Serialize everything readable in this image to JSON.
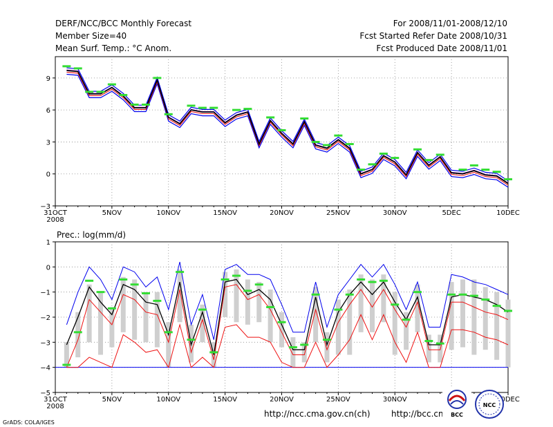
{
  "header": {
    "left": [
      "DERF/NCC/BCC Monthly Forecast",
      "Member Size=40",
      "Mean Surf. Temp.: °C Anom."
    ],
    "right": [
      "For 2008/11/01-2008/12/10",
      "Fcst Started Refer Date 2008/10/31",
      "Fcst Produced Date 2008/11/01"
    ]
  },
  "footer": {
    "grads": "GrADS: COLA/IGES",
    "url1": "http://ncc.cma.gov.cn(ch)",
    "url2": "http://bcc.cma.",
    "logo_bcc": "BCC",
    "logo_ncc": "NCC"
  },
  "colors": {
    "obs": "#33dd33",
    "upper": "#0000ee",
    "lower": "#ee1111",
    "mean": "#000000",
    "box": "#cfcfcf",
    "frame": "#000000"
  },
  "chart_data": [
    {
      "type": "line",
      "title": "Mean Surf. Temp.: °C Anom.",
      "x_ticks": [
        "31OCT",
        "5NOV",
        "10NOV",
        "15NOV",
        "20NOV",
        "25NOV",
        "30NOV",
        "5DEC",
        "10DEC"
      ],
      "x_tick_days": [
        0,
        5,
        10,
        15,
        20,
        25,
        30,
        35,
        40
      ],
      "x_sublabel": "2008",
      "ylim": [
        -3,
        11
      ],
      "y_ticks": [
        -3,
        0,
        3,
        6,
        9
      ],
      "x": [
        1,
        2,
        3,
        4,
        5,
        6,
        7,
        8,
        9,
        10,
        11,
        12,
        13,
        14,
        15,
        16,
        17,
        18,
        19,
        20,
        21,
        22,
        23,
        24,
        25,
        26,
        27,
        28,
        29,
        30,
        31,
        32,
        33,
        34,
        35,
        36,
        37,
        38,
        39,
        40
      ],
      "series": [
        {
          "name": "ensemble-mean",
          "values": [
            9.7,
            9.6,
            7.5,
            7.5,
            8.1,
            7.3,
            6.2,
            6.2,
            8.8,
            5.3,
            4.7,
            6.0,
            5.8,
            5.8,
            4.8,
            5.5,
            5.8,
            2.8,
            5.0,
            3.8,
            2.8,
            4.9,
            2.7,
            2.4,
            3.2,
            2.4,
            0.0,
            0.4,
            1.7,
            1.1,
            -0.1,
            2.0,
            0.8,
            1.6,
            0.1,
            0.0,
            0.3,
            -0.1,
            -0.2,
            -0.9
          ]
        },
        {
          "name": "member-spread-lines",
          "values": [
            0,
            0,
            0,
            0,
            0,
            0,
            0,
            0,
            0,
            0,
            0,
            0,
            0,
            0,
            0,
            0,
            0,
            0,
            0,
            0,
            0,
            0,
            0,
            0,
            0,
            0,
            0,
            0,
            0,
            0,
            0,
            0,
            0,
            0,
            0,
            0,
            0,
            0,
            0,
            0
          ]
        },
        {
          "name": "observed",
          "values": [
            10.1,
            9.9,
            7.7,
            7.7,
            8.4,
            7.4,
            6.5,
            6.5,
            9.0,
            5.6,
            null,
            6.4,
            6.2,
            6.2,
            null,
            6.0,
            6.1,
            null,
            5.3,
            4.1,
            null,
            5.2,
            3.0,
            2.7,
            3.6,
            2.8,
            0.4,
            0.9,
            1.9,
            1.5,
            null,
            2.3,
            1.3,
            1.8,
            null,
            0.4,
            0.8,
            0.4,
            0.2,
            -0.5
          ]
        }
      ]
    },
    {
      "type": "line",
      "title": "Prec.: log(mm/d)",
      "x_ticks": [
        "31OCT",
        "5NOV",
        "10NOV",
        "15NOV",
        "20NOV",
        "25NOV",
        "30NOV",
        "5DEC",
        "10DEC"
      ],
      "x_tick_days": [
        0,
        5,
        10,
        15,
        20,
        25,
        30,
        35,
        40
      ],
      "x_sublabel": "2008",
      "ylim": [
        -5,
        1
      ],
      "y_ticks": [
        -5,
        -4,
        -3,
        -2,
        -1,
        0,
        1
      ],
      "baseline": -4,
      "x": [
        1,
        2,
        3,
        4,
        5,
        6,
        7,
        8,
        9,
        10,
        11,
        12,
        13,
        14,
        15,
        16,
        17,
        18,
        19,
        20,
        21,
        22,
        23,
        24,
        25,
        26,
        27,
        28,
        29,
        30,
        31,
        32,
        33,
        34,
        35,
        36,
        37,
        38,
        39,
        40
      ],
      "series": [
        {
          "name": "upper",
          "values": [
            -2.3,
            -1.0,
            0.0,
            -0.5,
            -1.3,
            0.0,
            -0.2,
            -0.8,
            -0.4,
            -1.7,
            0.2,
            -2.3,
            -1.1,
            -2.9,
            -0.1,
            0.1,
            -0.3,
            -0.3,
            -0.5,
            -1.5,
            -2.6,
            -2.6,
            -0.6,
            -2.4,
            -1.1,
            -0.5,
            0.1,
            -0.4,
            0.1,
            -0.7,
            -1.7,
            -0.6,
            -2.4,
            -2.4,
            -0.3,
            -0.4,
            -0.6,
            -0.7,
            -0.9,
            -1.1
          ]
        },
        {
          "name": "ensemble-mean",
          "values": [
            -3.1,
            -2.0,
            -0.8,
            -1.4,
            -1.9,
            -0.7,
            -0.9,
            -1.4,
            -1.5,
            -2.7,
            -0.6,
            -3.1,
            -1.8,
            -3.5,
            -0.6,
            -0.5,
            -1.1,
            -0.9,
            -1.3,
            -2.3,
            -3.3,
            -3.3,
            -1.2,
            -3.1,
            -1.8,
            -1.1,
            -0.6,
            -1.1,
            -0.6,
            -1.4,
            -2.1,
            -1.2,
            -3.1,
            -3.1,
            -1.2,
            -1.1,
            -1.2,
            -1.3,
            -1.5,
            -1.8
          ]
        },
        {
          "name": "lower",
          "values": [
            -4.0,
            -2.9,
            -1.3,
            -1.8,
            -2.3,
            -1.1,
            -1.3,
            -1.8,
            -1.9,
            -3.0,
            -0.9,
            -3.4,
            -2.1,
            -3.7,
            -0.8,
            -0.7,
            -1.3,
            -1.1,
            -1.7,
            -2.6,
            -3.5,
            -3.5,
            -1.7,
            -3.3,
            -2.2,
            -1.5,
            -0.9,
            -1.6,
            -0.9,
            -1.7,
            -2.4,
            -1.4,
            -3.3,
            -3.3,
            -1.4,
            -1.4,
            -1.6,
            -1.8,
            -1.9,
            -2.1
          ]
        },
        {
          "name": "lower-min",
          "values": [
            -4.0,
            -4.0,
            -3.6,
            -3.8,
            -4.0,
            -2.7,
            -3.0,
            -3.4,
            -3.3,
            -4.0,
            -2.3,
            -4.0,
            -3.6,
            -4.0,
            -2.4,
            -2.3,
            -2.8,
            -2.8,
            -3.0,
            -3.8,
            -4.0,
            -4.0,
            -3.0,
            -4.0,
            -3.5,
            -2.9,
            -1.9,
            -2.9,
            -1.9,
            -3.0,
            -3.8,
            -2.6,
            -4.0,
            -4.0,
            -2.5,
            -2.5,
            -2.6,
            -2.8,
            -2.9,
            -3.1
          ]
        },
        {
          "name": "observed",
          "values": [
            -3.9,
            -2.6,
            -0.55,
            -1.0,
            -1.65,
            -0.5,
            -0.7,
            -1.05,
            -1.35,
            -2.6,
            -0.2,
            -2.9,
            -1.7,
            -3.4,
            -0.5,
            -0.35,
            -0.95,
            -0.7,
            -1.6,
            -2.2,
            -3.2,
            -3.1,
            -1.1,
            -2.9,
            -1.7,
            -1.1,
            -0.5,
            -0.6,
            -0.55,
            -1.5,
            -2.1,
            -1.0,
            -2.95,
            -3.05,
            -1.1,
            -1.1,
            -1.15,
            -1.3,
            -1.55,
            -1.75
          ]
        }
      ],
      "box_ranges": [
        [
          -4.0,
          -3.0
        ],
        [
          -3.6,
          -1.8
        ],
        [
          -3.0,
          -0.7
        ],
        [
          -3.5,
          -1.0
        ],
        [
          -3.2,
          -1.6
        ],
        [
          -2.6,
          -0.4
        ],
        [
          -2.9,
          -0.5
        ],
        [
          -3.0,
          -1.0
        ],
        [
          -3.2,
          -1.0
        ],
        [
          -4.0,
          -2.2
        ],
        [
          -2.2,
          -0.1
        ],
        [
          -3.8,
          -2.3
        ],
        [
          -3.0,
          -1.5
        ],
        [
          -4.0,
          -3.0
        ],
        [
          -2.0,
          -0.2
        ],
        [
          -2.2,
          -0.1
        ],
        [
          -2.3,
          -0.5
        ],
        [
          -2.2,
          -0.6
        ],
        [
          -3.0,
          -0.9
        ],
        [
          -3.2,
          -1.8
        ],
        [
          -4.0,
          -2.8
        ],
        [
          -3.8,
          -3.0
        ],
        [
          -3.0,
          -0.8
        ],
        [
          -3.8,
          -2.6
        ],
        [
          -3.5,
          -1.3
        ],
        [
          -3.5,
          -0.9
        ],
        [
          -2.6,
          -0.3
        ],
        [
          -2.6,
          -0.5
        ],
        [
          -2.2,
          -0.3
        ],
        [
          -3.5,
          -1.0
        ],
        [
          -3.3,
          -1.8
        ],
        [
          -2.6,
          -0.7
        ],
        [
          -3.8,
          -2.7
        ],
        [
          -3.8,
          -2.7
        ],
        [
          -3.3,
          -0.6
        ],
        [
          -3.2,
          -0.5
        ],
        [
          -3.5,
          -0.5
        ],
        [
          -3.3,
          -0.8
        ],
        [
          -3.7,
          -1.0
        ],
        [
          -4.0,
          -1.3
        ]
      ]
    }
  ]
}
